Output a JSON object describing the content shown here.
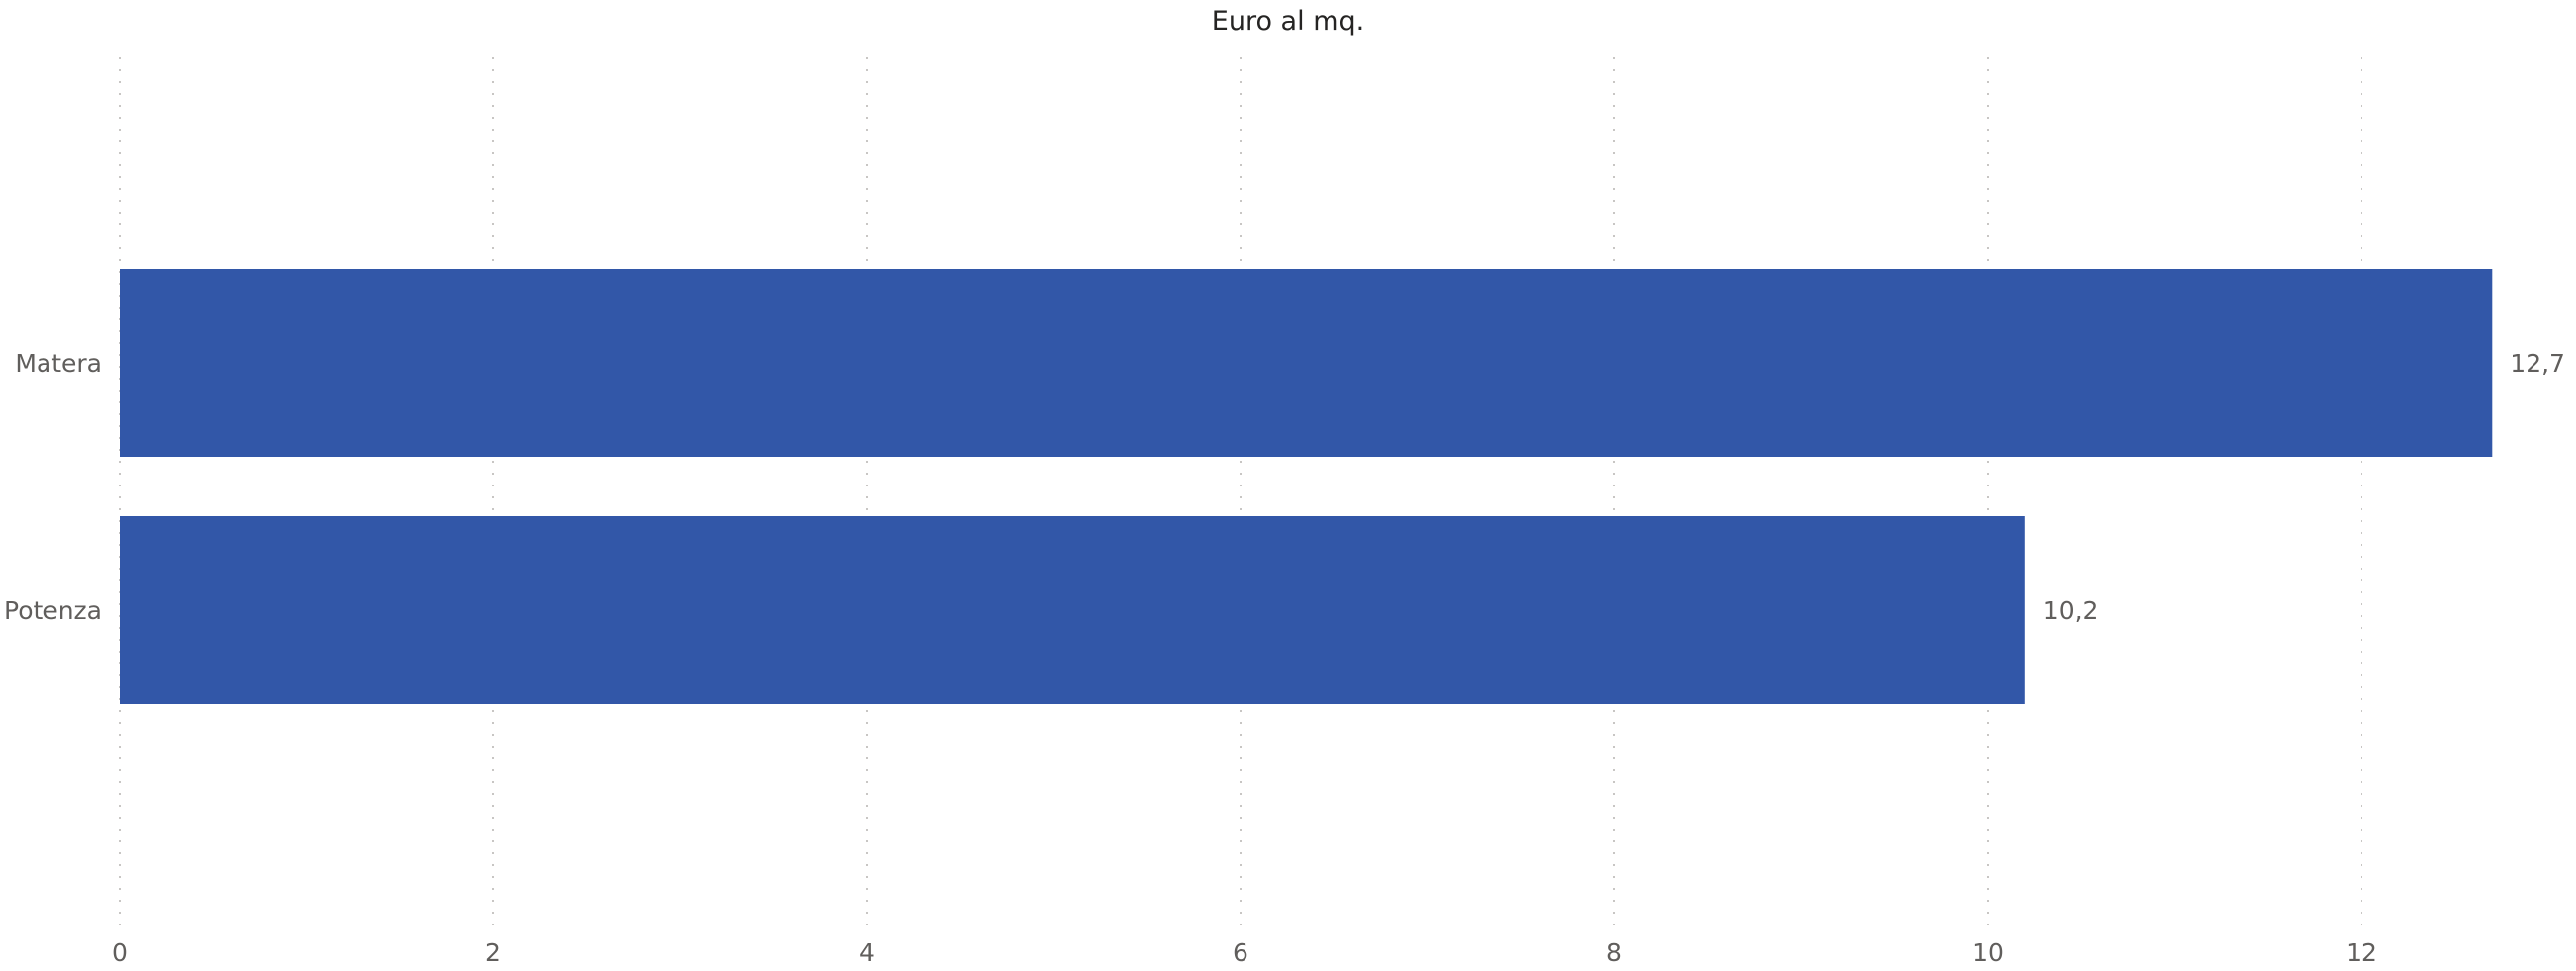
{
  "chart_data": {
    "type": "bar",
    "orientation": "horizontal",
    "title": "Euro al mq.",
    "categories": [
      "Matera",
      "Potenza"
    ],
    "values": [
      12.7,
      10.2
    ],
    "value_labels": [
      "12,7",
      "10,2"
    ],
    "xlim": [
      0,
      13
    ],
    "x_ticks": [
      0,
      2,
      4,
      6,
      8,
      10,
      12
    ],
    "xlabel": "",
    "ylabel": "",
    "grid": true,
    "bar_color": "#3257A8"
  }
}
